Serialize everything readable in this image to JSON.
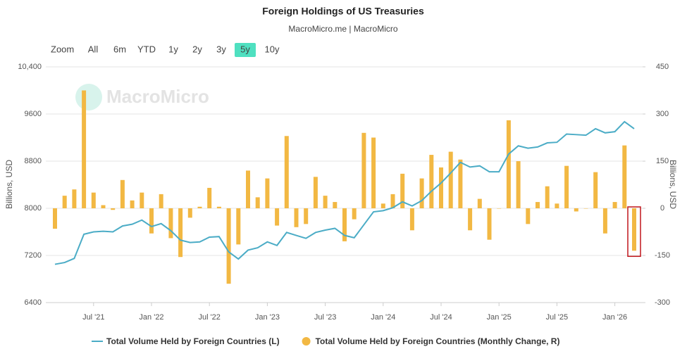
{
  "chart_data": {
    "type": "bar-line",
    "title": "Foreign Holdings of US Treasuries",
    "subtitle": "MacroMicro.me | MacroMicro",
    "watermark": "MacroMicro",
    "range_selector": {
      "label": "Zoom",
      "buttons": [
        "All",
        "6m",
        "YTD",
        "1y",
        "2y",
        "3y",
        "5y",
        "10y"
      ],
      "active": 6
    },
    "y_label": "Billions, USD",
    "y2_label": "Billions, USD",
    "x": [
      "2021-03",
      "2021-04",
      "2021-05",
      "2021-06",
      "2021-07",
      "2021-08",
      "2021-09",
      "2021-10",
      "2021-11",
      "2021-12",
      "2022-01",
      "2022-02",
      "2022-03",
      "2022-04",
      "2022-05",
      "2022-06",
      "2022-07",
      "2022-08",
      "2022-09",
      "2022-10",
      "2022-11",
      "2022-12",
      "2023-01",
      "2023-02",
      "2023-03",
      "2023-04",
      "2023-05",
      "2023-06",
      "2023-07",
      "2023-08",
      "2023-09",
      "2023-10",
      "2023-11",
      "2023-12",
      "2024-01",
      "2024-02",
      "2024-03",
      "2024-04",
      "2024-05",
      "2024-06",
      "2024-07",
      "2024-08",
      "2024-09",
      "2024-10",
      "2024-11",
      "2024-12",
      "2025-01",
      "2025-02",
      "2025-03",
      "2025-04",
      "2025-05",
      "2025-06",
      "2025-07",
      "2025-08",
      "2025-09",
      "2025-10",
      "2025-11",
      "2025-12",
      "2026-01",
      "2026-02",
      "2026-03"
    ],
    "xticks": [
      {
        "value": "2021-07",
        "label": "Jul '21"
      },
      {
        "value": "2022-01",
        "label": "Jan '22"
      },
      {
        "value": "2022-07",
        "label": "Jul '22"
      },
      {
        "value": "2023-01",
        "label": "Jan '23"
      },
      {
        "value": "2023-07",
        "label": "Jul '23"
      },
      {
        "value": "2024-01",
        "label": "Jan '24"
      },
      {
        "value": "2024-07",
        "label": "Jul '24"
      },
      {
        "value": "2025-01",
        "label": "Jan '25"
      },
      {
        "value": "2025-07",
        "label": "Jul '25"
      },
      {
        "value": "2026-01",
        "label": "Jan '26"
      }
    ],
    "ylim": [
      6400,
      10400
    ],
    "yticks": [
      6400,
      7200,
      8000,
      8800,
      9600,
      {
        "value": 10400,
        "label": "10,400"
      }
    ],
    "y2lim": [
      -300,
      450
    ],
    "y2ticks": [
      -300,
      -150,
      0,
      150,
      300,
      450
    ],
    "grid": true,
    "legend": "bottom",
    "series": [
      {
        "name": "Total Volume Held by Foreign Countries (L)",
        "type": "line",
        "color": "#4bacc6",
        "values": [
          7050,
          7080,
          7150,
          7560,
          7600,
          7610,
          7600,
          7700,
          7730,
          7800,
          7690,
          7740,
          7620,
          7460,
          7420,
          7430,
          7510,
          7520,
          7260,
          7140,
          7290,
          7330,
          7430,
          7370,
          7590,
          7540,
          7490,
          7590,
          7630,
          7660,
          7540,
          7500,
          7720,
          7940,
          7960,
          8010,
          8110,
          8040,
          8130,
          8290,
          8430,
          8600,
          8780,
          8700,
          8720,
          8620,
          8620,
          8920,
          9060,
          9020,
          9040,
          9110,
          9120,
          9260,
          9250,
          9240,
          9350,
          9280,
          9300,
          9470,
          9350
        ]
      },
      {
        "name": "Total Volume Held by Foreign Countries (Monthly Change, R)",
        "type": "bar",
        "axis": "y2",
        "color": "#f2b843",
        "values": [
          -65,
          40,
          60,
          375,
          50,
          10,
          -5,
          90,
          25,
          50,
          -80,
          45,
          -95,
          -155,
          -30,
          5,
          65,
          5,
          -240,
          -115,
          120,
          35,
          95,
          -55,
          230,
          -60,
          -50,
          100,
          40,
          20,
          -105,
          -35,
          240,
          225,
          15,
          45,
          110,
          -70,
          95,
          170,
          130,
          180,
          155,
          -70,
          30,
          -100,
          0,
          280,
          150,
          -50,
          20,
          70,
          15,
          135,
          -10,
          0,
          115,
          -80,
          20,
          200,
          -135
        ]
      }
    ]
  }
}
